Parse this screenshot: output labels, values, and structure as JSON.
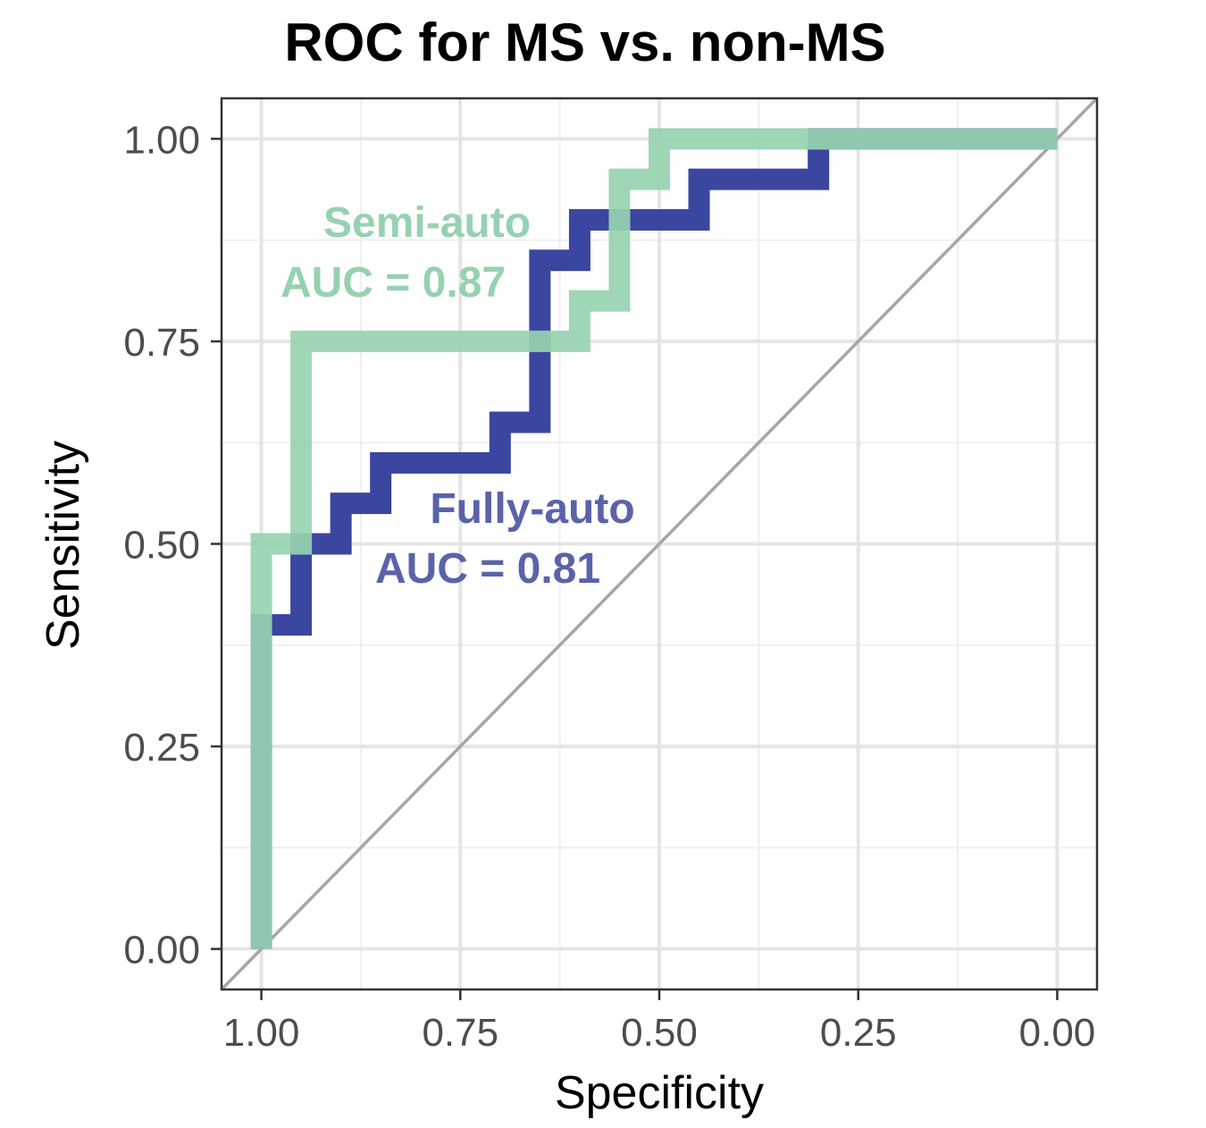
{
  "chart_data": {
    "type": "line",
    "title": "ROC for MS vs. non-MS",
    "xlabel": "Specificity",
    "ylabel": "Sensitivity",
    "xlim": [
      1.05,
      -0.05
    ],
    "ylim": [
      -0.05,
      1.05
    ],
    "x_reversed": true,
    "grid": true,
    "x_ticks": [
      1.0,
      0.75,
      0.5,
      0.25,
      0.0
    ],
    "x_tick_labels": [
      "1.00",
      "0.75",
      "0.50",
      "0.25",
      "0.00"
    ],
    "y_ticks": [
      0.0,
      0.25,
      0.5,
      0.75,
      1.0
    ],
    "y_tick_labels": [
      "0.00",
      "0.25",
      "0.50",
      "0.75",
      "1.00"
    ],
    "reference_line": {
      "from": [
        1.0,
        0.0
      ],
      "to": [
        0.0,
        1.0
      ],
      "color": "#a6a6a6"
    },
    "series": [
      {
        "key": "fully",
        "color": "#3b46a0",
        "specificity": [
          1.0,
          1.0,
          0.95,
          0.95,
          0.9,
          0.9,
          0.85,
          0.85,
          0.7,
          0.7,
          0.65,
          0.65,
          0.6,
          0.6,
          0.55,
          0.55,
          0.45,
          0.45,
          0.3,
          0.3,
          0.0
        ],
        "sensitivity": [
          0.0,
          0.4,
          0.4,
          0.5,
          0.5,
          0.55,
          0.55,
          0.6,
          0.6,
          0.65,
          0.65,
          0.85,
          0.85,
          0.9,
          0.9,
          0.9,
          0.9,
          0.95,
          0.95,
          1.0,
          1.0
        ]
      },
      {
        "key": "semi",
        "color": "#97d2b0",
        "specificity": [
          1.0,
          1.0,
          0.95,
          0.95,
          0.6,
          0.6,
          0.55,
          0.55,
          0.5,
          0.5,
          0.0
        ],
        "sensitivity": [
          0.0,
          0.5,
          0.5,
          0.75,
          0.75,
          0.8,
          0.8,
          0.95,
          0.95,
          1.0,
          1.0
        ]
      }
    ],
    "annotations": [
      {
        "key": "semi_name",
        "text": "Semi-auto",
        "color": "#97d2b0"
      },
      {
        "key": "semi_auc",
        "text": "AUC = 0.87",
        "color": "#97d2b0"
      },
      {
        "key": "fully_name",
        "text": "Fully-auto",
        "color": "#5a63aa"
      },
      {
        "key": "fully_auc",
        "text": "AUC = 0.81",
        "color": "#5a63aa"
      }
    ]
  }
}
